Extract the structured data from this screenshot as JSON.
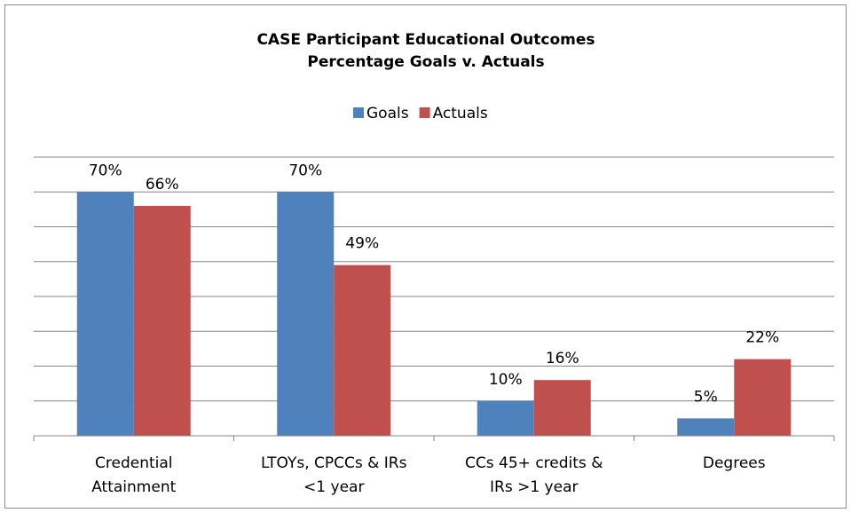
{
  "chart_data": {
    "type": "bar",
    "title": "CASE Participant Educational Outcomes",
    "subtitle": "Percentage Goals v. Actuals",
    "categories": [
      [
        "Credential",
        "Attainment"
      ],
      [
        "LTOYs, CPCCs & IRs",
        "<1 year"
      ],
      [
        "CCs 45+ credits &",
        "IRs >1 year"
      ],
      [
        "Degrees"
      ]
    ],
    "series": [
      {
        "name": "Goals",
        "color": "#4f81bd",
        "values": [
          70,
          70,
          10,
          5
        ],
        "value_labels": [
          "70%",
          "70%",
          "10%",
          "5%"
        ]
      },
      {
        "name": "Actuals",
        "color": "#c0504d",
        "values": [
          66,
          49,
          16,
          22
        ],
        "value_labels": [
          "66%",
          "49%",
          "16%",
          "22%"
        ]
      }
    ],
    "ylim": [
      0,
      80
    ],
    "yticks": [
      0,
      10,
      20,
      30,
      40,
      50,
      60,
      70,
      80
    ],
    "grid": true,
    "legend": "top"
  }
}
